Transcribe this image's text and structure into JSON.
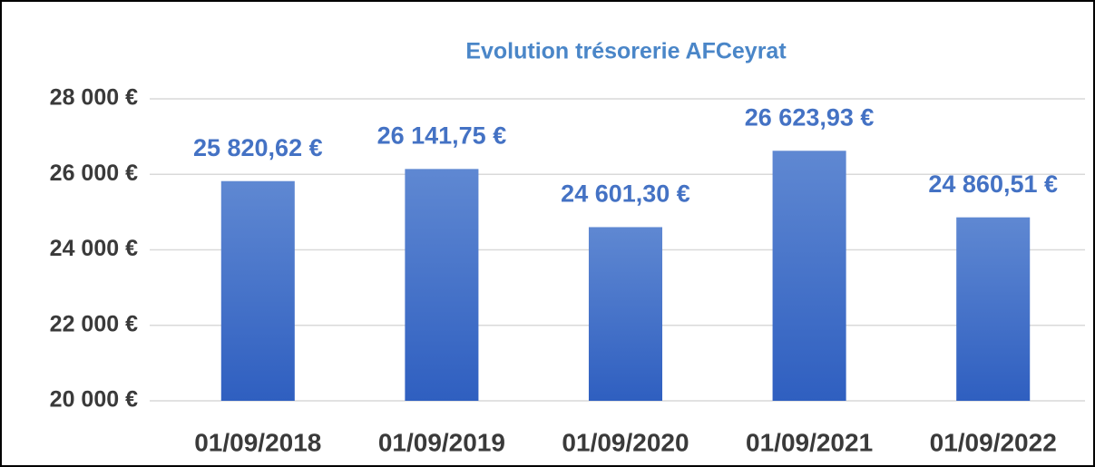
{
  "chart_data": {
    "type": "bar",
    "title": "Evolution trésorerie AFCeyrat",
    "categories": [
      "01/09/2018",
      "01/09/2019",
      "01/09/2020",
      "01/09/2021",
      "01/09/2022"
    ],
    "values": [
      25820.62,
      26141.75,
      24601.3,
      26623.93,
      24860.51
    ],
    "value_labels": [
      "25 820,62 €",
      "26 141,75 €",
      "24 601,30 €",
      "26 623,93 €",
      "24 860,51 €"
    ],
    "color": "#4472c4",
    "ylim": [
      20000,
      28000
    ],
    "yticks": [
      {
        "value": 20000,
        "label": "20 000 €"
      },
      {
        "value": 22000,
        "label": "22 000 €"
      },
      {
        "value": 24000,
        "label": "24 000 €"
      },
      {
        "value": 26000,
        "label": "26 000 €"
      },
      {
        "value": 28000,
        "label": "28 000 €"
      }
    ],
    "grid": true
  }
}
